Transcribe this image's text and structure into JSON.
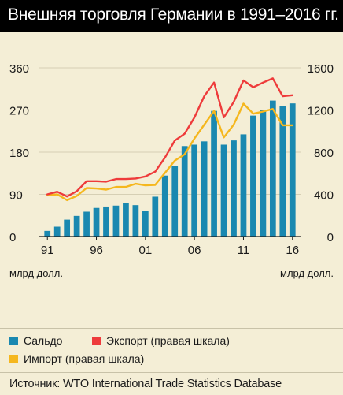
{
  "header": {
    "title": "Внешняя торговля Германии в 1991–2016 гг."
  },
  "units": {
    "left": "млрд долл.",
    "right": "млрд долл."
  },
  "legend": {
    "saldo": "Сальдо",
    "export": "Экспорт (правая шкала)",
    "import": "Импорт (правая шкала)"
  },
  "source": "Источник: WTO International Trade Statistics Database",
  "colors": {
    "saldo": "#1a88b0",
    "export": "#ee3b3b",
    "import": "#f5b71e",
    "grid": "#d6cfb4",
    "background": "#f4eed6"
  },
  "chart_data": {
    "type": "bar",
    "title": "",
    "x": [
      1991,
      1992,
      1993,
      1994,
      1995,
      1996,
      1997,
      1998,
      1999,
      2000,
      2001,
      2002,
      2003,
      2004,
      2005,
      2006,
      2007,
      2008,
      2009,
      2010,
      2011,
      2012,
      2013,
      2014,
      2015,
      2016
    ],
    "xtick_labels": [
      "91",
      "96",
      "01",
      "06",
      "11",
      "16"
    ],
    "xtick_years": [
      1991,
      1996,
      2001,
      2006,
      2011,
      2016
    ],
    "y_left": {
      "ylim": [
        0,
        360
      ],
      "ticks": [
        0,
        90,
        180,
        270,
        360
      ]
    },
    "y_right": {
      "ylim": [
        0,
        1600
      ],
      "ticks": [
        0,
        400,
        800,
        1200,
        1600
      ]
    },
    "grid": true,
    "series": [
      {
        "name": "Сальдо",
        "type": "bar",
        "axis": "left",
        "values": [
          12,
          21,
          36,
          44,
          53,
          61,
          64,
          66,
          71,
          67,
          54,
          85,
          130,
          150,
          193,
          196,
          203,
          268,
          196,
          205,
          218,
          258,
          270,
          290,
          278,
          284
        ]
      },
      {
        "name": "Экспорт (правая шкала)",
        "type": "line",
        "axis": "right",
        "values": [
          400,
          425,
          380,
          430,
          525,
          525,
          520,
          545,
          545,
          550,
          570,
          615,
          750,
          910,
          975,
          1130,
          1330,
          1460,
          1130,
          1275,
          1480,
          1415,
          1460,
          1500,
          1330,
          1340
        ]
      },
      {
        "name": "Импорт (правая шкала)",
        "type": "line",
        "axis": "right",
        "values": [
          390,
          400,
          345,
          385,
          460,
          455,
          445,
          470,
          470,
          500,
          485,
          490,
          605,
          720,
          780,
          930,
          1060,
          1190,
          940,
          1060,
          1260,
          1165,
          1185,
          1210,
          1055,
          1055
        ]
      }
    ]
  }
}
